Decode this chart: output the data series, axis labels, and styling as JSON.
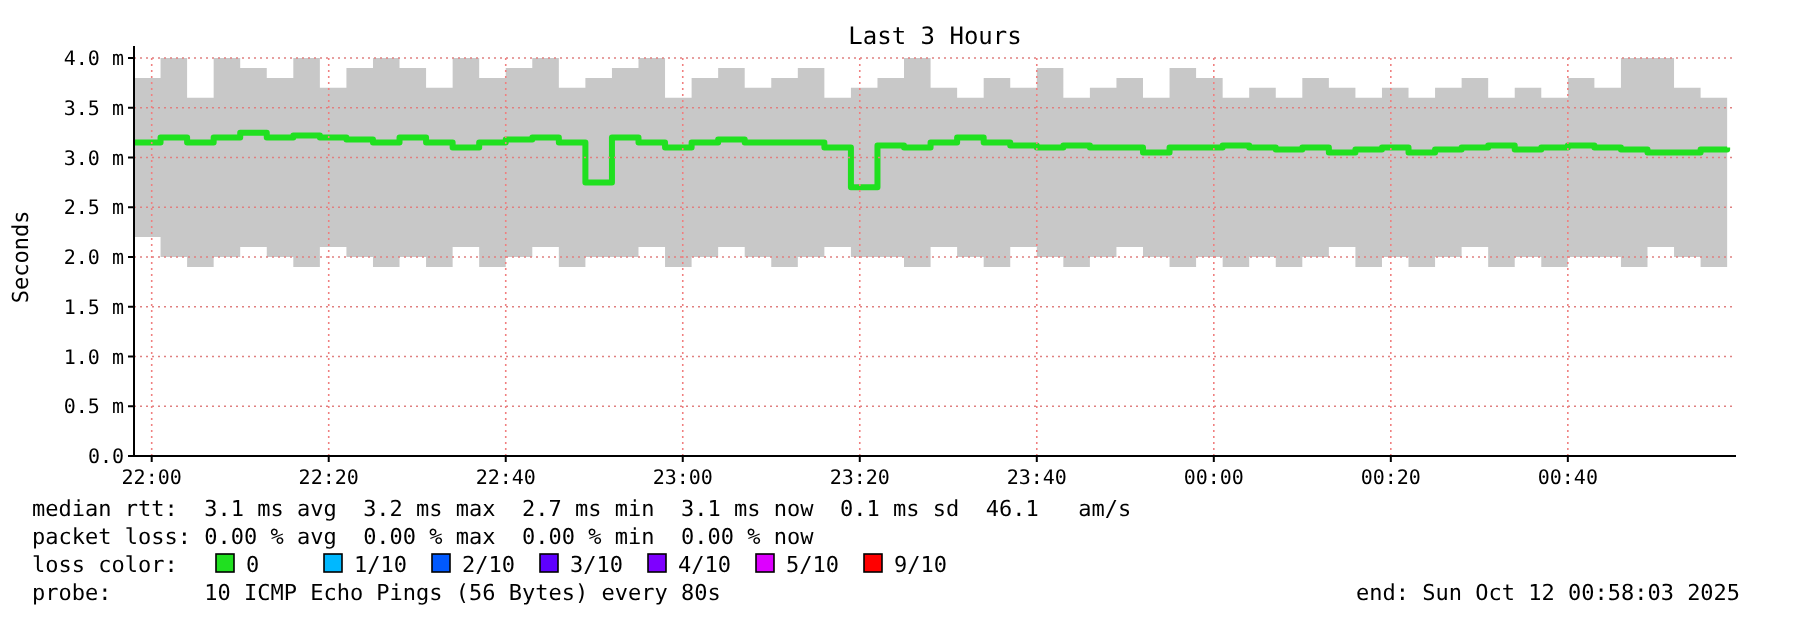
{
  "chart_data": {
    "type": "step",
    "title": "Last 3 Hours",
    "ylabel": "Seconds",
    "x": [
      "2025-10-11T21:58",
      "2025-10-11T22:01",
      "2025-10-11T22:04",
      "2025-10-11T22:07",
      "2025-10-11T22:10",
      "2025-10-11T22:13",
      "2025-10-11T22:16",
      "2025-10-11T22:19",
      "2025-10-11T22:22",
      "2025-10-11T22:25",
      "2025-10-11T22:28",
      "2025-10-11T22:31",
      "2025-10-11T22:34",
      "2025-10-11T22:37",
      "2025-10-11T22:40",
      "2025-10-11T22:43",
      "2025-10-11T22:46",
      "2025-10-11T22:49",
      "2025-10-11T22:52",
      "2025-10-11T22:55",
      "2025-10-11T22:58",
      "2025-10-11T23:01",
      "2025-10-11T23:04",
      "2025-10-11T23:07",
      "2025-10-11T23:10",
      "2025-10-11T23:13",
      "2025-10-11T23:16",
      "2025-10-11T23:19",
      "2025-10-11T23:22",
      "2025-10-11T23:25",
      "2025-10-11T23:28",
      "2025-10-11T23:31",
      "2025-10-11T23:34",
      "2025-10-11T23:37",
      "2025-10-11T23:40",
      "2025-10-11T23:43",
      "2025-10-11T23:46",
      "2025-10-11T23:49",
      "2025-10-11T23:52",
      "2025-10-11T23:55",
      "2025-10-11T23:58",
      "2025-10-12T00:01",
      "2025-10-12T00:04",
      "2025-10-12T00:07",
      "2025-10-12T00:10",
      "2025-10-12T00:13",
      "2025-10-12T00:16",
      "2025-10-12T00:19",
      "2025-10-12T00:22",
      "2025-10-12T00:25",
      "2025-10-12T00:28",
      "2025-10-12T00:31",
      "2025-10-12T00:34",
      "2025-10-12T00:37",
      "2025-10-12T00:40",
      "2025-10-12T00:43",
      "2025-10-12T00:46",
      "2025-10-12T00:49",
      "2025-10-12T00:52",
      "2025-10-12T00:55",
      "2025-10-12T00:58"
    ],
    "series": [
      {
        "name": "0",
        "color": "#20e020",
        "values": [
          3.15,
          3.2,
          3.15,
          3.2,
          3.25,
          3.2,
          3.22,
          3.2,
          3.18,
          3.15,
          3.2,
          3.15,
          3.1,
          3.15,
          3.18,
          3.2,
          3.15,
          2.75,
          3.2,
          3.15,
          3.1,
          3.15,
          3.18,
          3.15,
          3.15,
          3.15,
          3.1,
          2.7,
          3.12,
          3.1,
          3.15,
          3.2,
          3.15,
          3.12,
          3.1,
          3.12,
          3.1,
          3.1,
          3.05,
          3.1,
          3.1,
          3.12,
          3.1,
          3.08,
          3.1,
          3.05,
          3.08,
          3.1,
          3.05,
          3.08,
          3.1,
          3.12,
          3.08,
          3.1,
          3.12,
          3.1,
          3.08,
          3.05,
          3.05,
          3.08,
          3.1
        ],
        "upper": [
          3.8,
          4.0,
          3.6,
          4.0,
          3.9,
          3.8,
          4.0,
          3.7,
          3.9,
          4.0,
          3.9,
          3.7,
          4.0,
          3.8,
          3.9,
          4.0,
          3.7,
          3.8,
          3.9,
          4.0,
          3.6,
          3.8,
          3.9,
          3.7,
          3.8,
          3.9,
          3.6,
          3.7,
          3.8,
          4.0,
          3.7,
          3.6,
          3.8,
          3.7,
          3.9,
          3.6,
          3.7,
          3.8,
          3.6,
          3.9,
          3.8,
          3.6,
          3.7,
          3.6,
          3.8,
          3.7,
          3.6,
          3.7,
          3.6,
          3.7,
          3.8,
          3.6,
          3.7,
          3.6,
          3.8,
          3.7,
          4.0,
          4.0,
          3.7,
          3.6,
          3.6
        ],
        "lower": [
          2.2,
          2.0,
          1.9,
          2.0,
          2.1,
          2.0,
          1.9,
          2.1,
          2.0,
          1.9,
          2.0,
          1.9,
          2.1,
          1.9,
          2.0,
          2.1,
          1.9,
          2.0,
          2.0,
          2.1,
          1.9,
          2.0,
          2.1,
          2.0,
          1.9,
          2.0,
          2.1,
          2.0,
          2.0,
          1.9,
          2.1,
          2.0,
          1.9,
          2.1,
          2.0,
          1.9,
          2.0,
          2.1,
          2.0,
          1.9,
          2.0,
          1.9,
          2.0,
          1.9,
          2.0,
          2.1,
          1.9,
          2.0,
          1.9,
          2.0,
          2.1,
          1.9,
          2.0,
          1.9,
          2.0,
          2.0,
          1.9,
          2.1,
          2.0,
          1.9,
          1.9
        ]
      },
      {
        "name": "1/10",
        "color": "#00b8ff",
        "values": [
          null,
          null,
          null,
          null,
          null,
          null,
          null,
          null,
          null,
          null,
          null,
          null,
          null,
          null,
          null,
          null,
          null,
          null,
          null,
          null,
          null,
          null,
          null,
          null,
          null,
          null,
          null,
          null,
          null,
          null,
          null,
          null,
          null,
          null,
          null,
          null,
          null,
          null,
          null,
          null,
          null,
          null,
          null,
          null,
          null,
          null,
          null,
          null,
          null,
          null,
          null,
          null,
          null,
          null,
          null,
          null,
          null,
          null,
          null,
          null,
          null
        ]
      },
      {
        "name": "2/10",
        "color": "#0059ff",
        "values": [
          null,
          null,
          null,
          null,
          null,
          null,
          null,
          null,
          null,
          null,
          null,
          null,
          null,
          null,
          null,
          null,
          null,
          null,
          null,
          null,
          null,
          null,
          null,
          null,
          null,
          null,
          null,
          null,
          null,
          null,
          null,
          null,
          null,
          null,
          null,
          null,
          null,
          null,
          null,
          null,
          null,
          null,
          null,
          null,
          null,
          null,
          null,
          null,
          null,
          null,
          null,
          null,
          null,
          null,
          null,
          null,
          null,
          null,
          null,
          null,
          null
        ]
      },
      {
        "name": "3/10",
        "color": "#5e00ff",
        "values": [
          null,
          null,
          null,
          null,
          null,
          null,
          null,
          null,
          null,
          null,
          null,
          null,
          null,
          null,
          null,
          null,
          null,
          null,
          null,
          null,
          null,
          null,
          null,
          null,
          null,
          null,
          null,
          null,
          null,
          null,
          null,
          null,
          null,
          null,
          null,
          null,
          null,
          null,
          null,
          null,
          null,
          null,
          null,
          null,
          null,
          null,
          null,
          null,
          null,
          null,
          null,
          null,
          null,
          null,
          null,
          null,
          null,
          null,
          null,
          null,
          null
        ]
      },
      {
        "name": "4/10",
        "color": "#7e00ff",
        "values": [
          null,
          null,
          null,
          null,
          null,
          null,
          null,
          null,
          null,
          null,
          null,
          null,
          null,
          null,
          null,
          null,
          null,
          null,
          null,
          null,
          null,
          null,
          null,
          null,
          null,
          null,
          null,
          null,
          null,
          null,
          null,
          null,
          null,
          null,
          null,
          null,
          null,
          null,
          null,
          null,
          null,
          null,
          null,
          null,
          null,
          null,
          null,
          null,
          null,
          null,
          null,
          null,
          null,
          null,
          null,
          null,
          null,
          null,
          null,
          null,
          null
        ]
      },
      {
        "name": "5/10",
        "color": "#dd00ff",
        "values": [
          null,
          null,
          null,
          null,
          null,
          null,
          null,
          null,
          null,
          null,
          null,
          null,
          null,
          null,
          null,
          null,
          null,
          null,
          null,
          null,
          null,
          null,
          null,
          null,
          null,
          null,
          null,
          null,
          null,
          null,
          null,
          null,
          null,
          null,
          null,
          null,
          null,
          null,
          null,
          null,
          null,
          null,
          null,
          null,
          null,
          null,
          null,
          null,
          null,
          null,
          null,
          null,
          null,
          null,
          null,
          null,
          null,
          null,
          null,
          null,
          null
        ]
      },
      {
        "name": "9/10",
        "color": "#ff0000",
        "values": [
          null,
          null,
          null,
          null,
          null,
          null,
          null,
          null,
          null,
          null,
          null,
          null,
          null,
          null,
          null,
          null,
          null,
          null,
          null,
          null,
          null,
          null,
          null,
          null,
          null,
          null,
          null,
          null,
          null,
          null,
          null,
          null,
          null,
          null,
          null,
          null,
          null,
          null,
          null,
          null,
          null,
          null,
          null,
          null,
          null,
          null,
          null,
          null,
          null,
          null,
          null,
          null,
          null,
          null,
          null,
          null,
          null,
          null,
          null,
          null,
          null
        ]
      }
    ],
    "xlim": [
      "2025-10-11T21:58",
      "2025-10-12T00:59"
    ],
    "xticks": [
      {
        "value": "2025-10-11T22:00",
        "label": "22:00"
      },
      {
        "value": "2025-10-11T22:20",
        "label": "22:20"
      },
      {
        "value": "2025-10-11T22:40",
        "label": "22:40"
      },
      {
        "value": "2025-10-11T23:00",
        "label": "23:00"
      },
      {
        "value": "2025-10-11T23:20",
        "label": "23:20"
      },
      {
        "value": "2025-10-11T23:40",
        "label": "23:40"
      },
      {
        "value": "2025-10-12T00:00",
        "label": "00:00"
      },
      {
        "value": "2025-10-12T00:20",
        "label": "00:20"
      },
      {
        "value": "2025-10-12T00:40",
        "label": "00:40"
      }
    ],
    "ylim": [
      0,
      4
    ],
    "yticks": [
      {
        "value": 0,
        "label": "0.0"
      },
      {
        "value": 0.5,
        "label": "0.5 m"
      },
      {
        "value": 1,
        "label": "1.0 m"
      },
      {
        "value": 1.5,
        "label": "1.5 m"
      },
      {
        "value": 2,
        "label": "2.0 m"
      },
      {
        "value": 2.5,
        "label": "2.5 m"
      },
      {
        "value": 3,
        "label": "3.0 m"
      },
      {
        "value": 3.5,
        "label": "3.5 m"
      },
      {
        "value": 4,
        "label": "4.0 m"
      }
    ],
    "grid": true,
    "legend": "bottom",
    "annotations": [
      "median rtt:  3.1 ms avg  3.2 ms max  2.7 ms min  3.1 ms now  0.1 ms sd  46.1   am/s",
      "packet loss: 0.00 % avg  0.00 % max  0.00 % min  0.00 % now",
      "loss color:",
      "probe:       10 ICMP Echo Pings (56 Bytes) every 80s",
      "end: Sun Oct 12 00:58:03 2025"
    ]
  }
}
